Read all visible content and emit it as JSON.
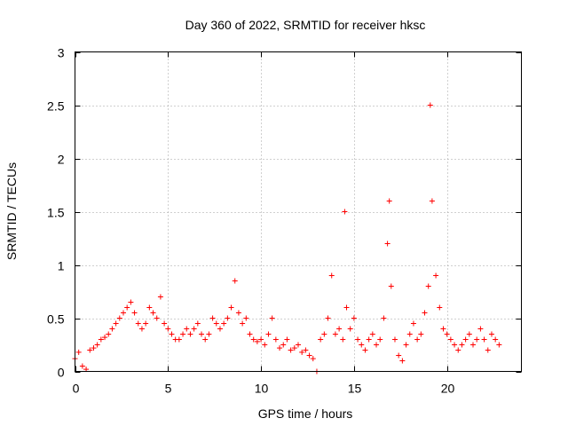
{
  "chart_data": {
    "type": "scatter",
    "title": "Day 360 of 2022, SRMTID for receiver hksc",
    "xlabel": "GPS time / hours",
    "ylabel": "SRMTID / TECUs",
    "xlim": [
      0,
      24
    ],
    "ylim": [
      0,
      3
    ],
    "xticks": [
      0,
      5,
      10,
      15,
      20
    ],
    "xtick_labels": [
      "0",
      "5",
      "10",
      "15",
      "20"
    ],
    "yticks": [
      0,
      0.5,
      1,
      1.5,
      2,
      2.5,
      3
    ],
    "ytick_labels": [
      "0",
      "0.5",
      "1",
      "1.5",
      "2",
      "2.5",
      "3"
    ],
    "grid": true,
    "marker": "+",
    "marker_color": "#ff0000",
    "series": [
      {
        "name": "SRMTID",
        "x": [
          0.0,
          0.2,
          0.4,
          0.6,
          0.8,
          1.0,
          1.2,
          1.4,
          1.6,
          1.8,
          2.0,
          2.2,
          2.4,
          2.6,
          2.8,
          3.0,
          3.2,
          3.4,
          3.6,
          3.8,
          4.0,
          4.2,
          4.4,
          4.6,
          4.8,
          5.0,
          5.2,
          5.4,
          5.6,
          5.8,
          6.0,
          6.2,
          6.4,
          6.6,
          6.8,
          7.0,
          7.2,
          7.4,
          7.6,
          7.8,
          8.0,
          8.2,
          8.4,
          8.6,
          8.8,
          9.0,
          9.2,
          9.4,
          9.6,
          9.8,
          10.0,
          10.2,
          10.4,
          10.6,
          10.8,
          11.0,
          11.2,
          11.4,
          11.6,
          11.8,
          12.0,
          12.2,
          12.4,
          12.6,
          12.8,
          13.0,
          13.2,
          13.4,
          13.6,
          13.8,
          14.0,
          14.2,
          14.4,
          14.5,
          14.6,
          14.8,
          15.0,
          15.2,
          15.4,
          15.6,
          15.8,
          16.0,
          16.2,
          16.4,
          16.6,
          16.8,
          16.9,
          17.0,
          17.2,
          17.4,
          17.6,
          17.8,
          18.0,
          18.2,
          18.4,
          18.6,
          18.8,
          19.0,
          19.1,
          19.2,
          19.4,
          19.6,
          19.8,
          20.0,
          20.2,
          20.4,
          20.6,
          20.8,
          21.0,
          21.2,
          21.4,
          21.6,
          21.8,
          22.0,
          22.2,
          22.4,
          22.6,
          22.8
        ],
        "y": [
          0.12,
          0.18,
          0.05,
          0.02,
          0.2,
          0.22,
          0.25,
          0.3,
          0.32,
          0.35,
          0.4,
          0.45,
          0.5,
          0.55,
          0.6,
          0.65,
          0.55,
          0.45,
          0.4,
          0.45,
          0.6,
          0.55,
          0.5,
          0.7,
          0.45,
          0.4,
          0.35,
          0.3,
          0.3,
          0.35,
          0.4,
          0.35,
          0.4,
          0.45,
          0.35,
          0.3,
          0.35,
          0.5,
          0.45,
          0.4,
          0.45,
          0.5,
          0.6,
          0.85,
          0.55,
          0.45,
          0.5,
          0.35,
          0.3,
          0.28,
          0.3,
          0.25,
          0.35,
          0.5,
          0.3,
          0.22,
          0.25,
          0.3,
          0.2,
          0.22,
          0.25,
          0.18,
          0.2,
          0.15,
          0.12,
          0.0,
          0.3,
          0.35,
          0.5,
          0.9,
          0.35,
          0.4,
          0.3,
          1.5,
          0.6,
          0.4,
          0.5,
          0.3,
          0.25,
          0.2,
          0.3,
          0.35,
          0.25,
          0.3,
          0.5,
          1.2,
          1.6,
          0.8,
          0.3,
          0.15,
          0.1,
          0.25,
          0.35,
          0.45,
          0.3,
          0.35,
          0.55,
          0.8,
          2.5,
          1.6,
          0.9,
          0.6,
          0.4,
          0.35,
          0.3,
          0.25,
          0.2,
          0.25,
          0.3,
          0.35,
          0.25,
          0.3,
          0.4,
          0.3,
          0.2,
          0.35,
          0.3,
          0.25
        ]
      }
    ]
  }
}
